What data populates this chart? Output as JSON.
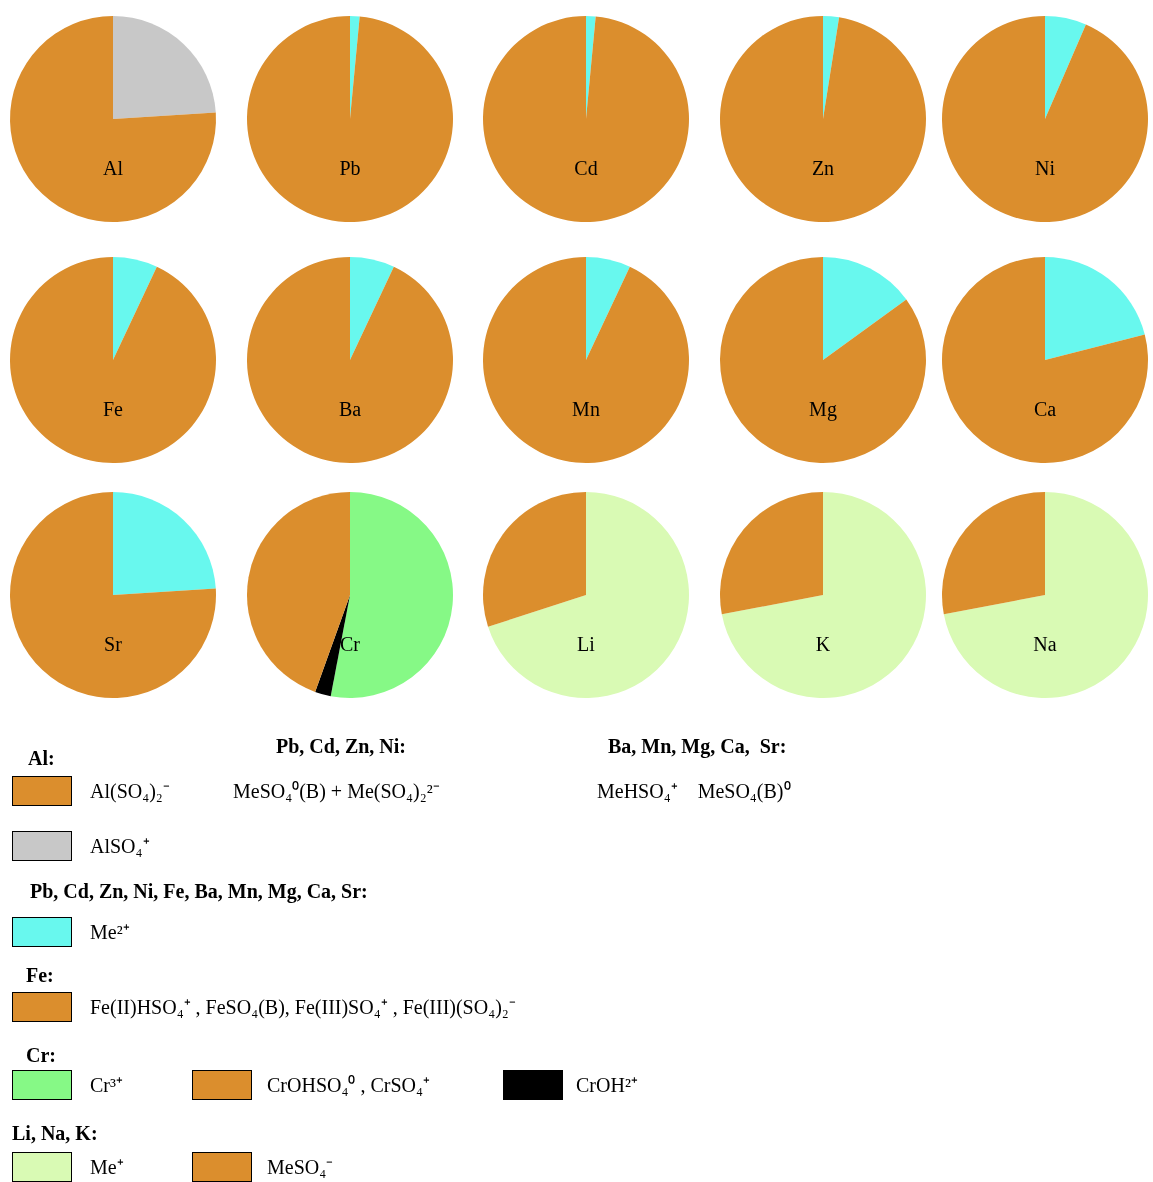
{
  "chart_data": [
    {
      "type": "pie",
      "title": "Al",
      "categories": [
        "AlSO₄⁺",
        "Al(SO₄)₂⁻"
      ],
      "values": [
        24,
        76
      ],
      "colors": [
        "#c8c8c8",
        "#db8e2d"
      ]
    },
    {
      "type": "pie",
      "title": "Pb",
      "categories": [
        "Me²⁺",
        "MeSO₄⁰(B) + Me(SO₄)₂²⁻"
      ],
      "values": [
        1.5,
        98.5
      ],
      "colors": [
        "#68f8ee",
        "#db8e2d"
      ]
    },
    {
      "type": "pie",
      "title": "Cd",
      "categories": [
        null,
        null
      ],
      "values": [
        1.5,
        98.5
      ],
      "colors": [
        "#68f8ee",
        "#db8e2d"
      ]
    },
    {
      "type": "pie",
      "title": "Zn",
      "categories": [
        null,
        null
      ],
      "values": [
        2.5,
        97.5
      ],
      "colors": [
        "#68f8ee",
        "#db8e2d"
      ]
    },
    {
      "type": "pie",
      "title": "Ni",
      "categories": [
        null,
        null
      ],
      "values": [
        6.5,
        93.5
      ],
      "colors": [
        "#68f8ee",
        "#db8e2d"
      ]
    },
    {
      "type": "pie",
      "title": "Fe",
      "categories": [
        null,
        "Fe(II)HSO₄⁺ , FeSO₄(B), Fe(III)SO₄⁺ , Fe(III)(SO₄)₂⁻"
      ],
      "values": [
        7,
        93
      ],
      "colors": [
        "#68f8ee",
        "#db8e2d"
      ]
    },
    {
      "type": "pie",
      "title": "Ba",
      "categories": [
        null,
        "MeHSO₄⁺    MeSO₄(B)⁰"
      ],
      "values": [
        7,
        93
      ],
      "colors": [
        "#68f8ee",
        "#db8e2d"
      ]
    },
    {
      "type": "pie",
      "title": "Mn",
      "categories": [
        null,
        null
      ],
      "values": [
        7,
        93
      ],
      "colors": [
        "#68f8ee",
        "#db8e2d"
      ]
    },
    {
      "type": "pie",
      "title": "Mg",
      "categories": [
        null,
        null
      ],
      "values": [
        15,
        85
      ],
      "colors": [
        "#68f8ee",
        "#db8e2d"
      ]
    },
    {
      "type": "pie",
      "title": "Ca",
      "categories": [
        null,
        null
      ],
      "values": [
        21,
        79
      ],
      "colors": [
        "#68f8ee",
        "#db8e2d"
      ]
    },
    {
      "type": "pie",
      "title": "Sr",
      "categories": [
        null,
        null
      ],
      "values": [
        24,
        76
      ],
      "colors": [
        "#68f8ee",
        "#db8e2d"
      ]
    },
    {
      "type": "pie",
      "title": "Cr",
      "categories": [
        "Cr³⁺",
        "CrOH²⁺",
        "CrOHSO₄⁰ , CrSO₄⁺"
      ],
      "values": [
        53,
        2.5,
        44.5
      ],
      "colors": [
        "#86f986",
        "#000000",
        "#db8e2d"
      ]
    },
    {
      "type": "pie",
      "title": "Li",
      "categories": [
        "Me⁺",
        "MeSO₄⁻"
      ],
      "values": [
        70,
        30
      ],
      "colors": [
        "#d9fab4",
        "#db8e2d"
      ]
    },
    {
      "type": "pie",
      "title": "K",
      "categories": [
        null,
        null
      ],
      "values": [
        72,
        28
      ],
      "colors": [
        "#d9fab4",
        "#db8e2d"
      ]
    },
    {
      "type": "pie",
      "title": "Na",
      "categories": [
        null,
        null
      ],
      "values": [
        72,
        28
      ],
      "colors": [
        "#d9fab4",
        "#db8e2d"
      ]
    },
    {
      "type": "other",
      "annotations": [
        "Al:",
        "Pb, Cd, Zn, Ni:",
        "Ba, Mn, Mg, Ca,  Sr:",
        "Pb, Cd, Zn, Ni, Fe, Ba, Mn, Mg, Ca, Sr:",
        "Fe:",
        "Cr:",
        "Li, Na, K:"
      ]
    }
  ]
}
